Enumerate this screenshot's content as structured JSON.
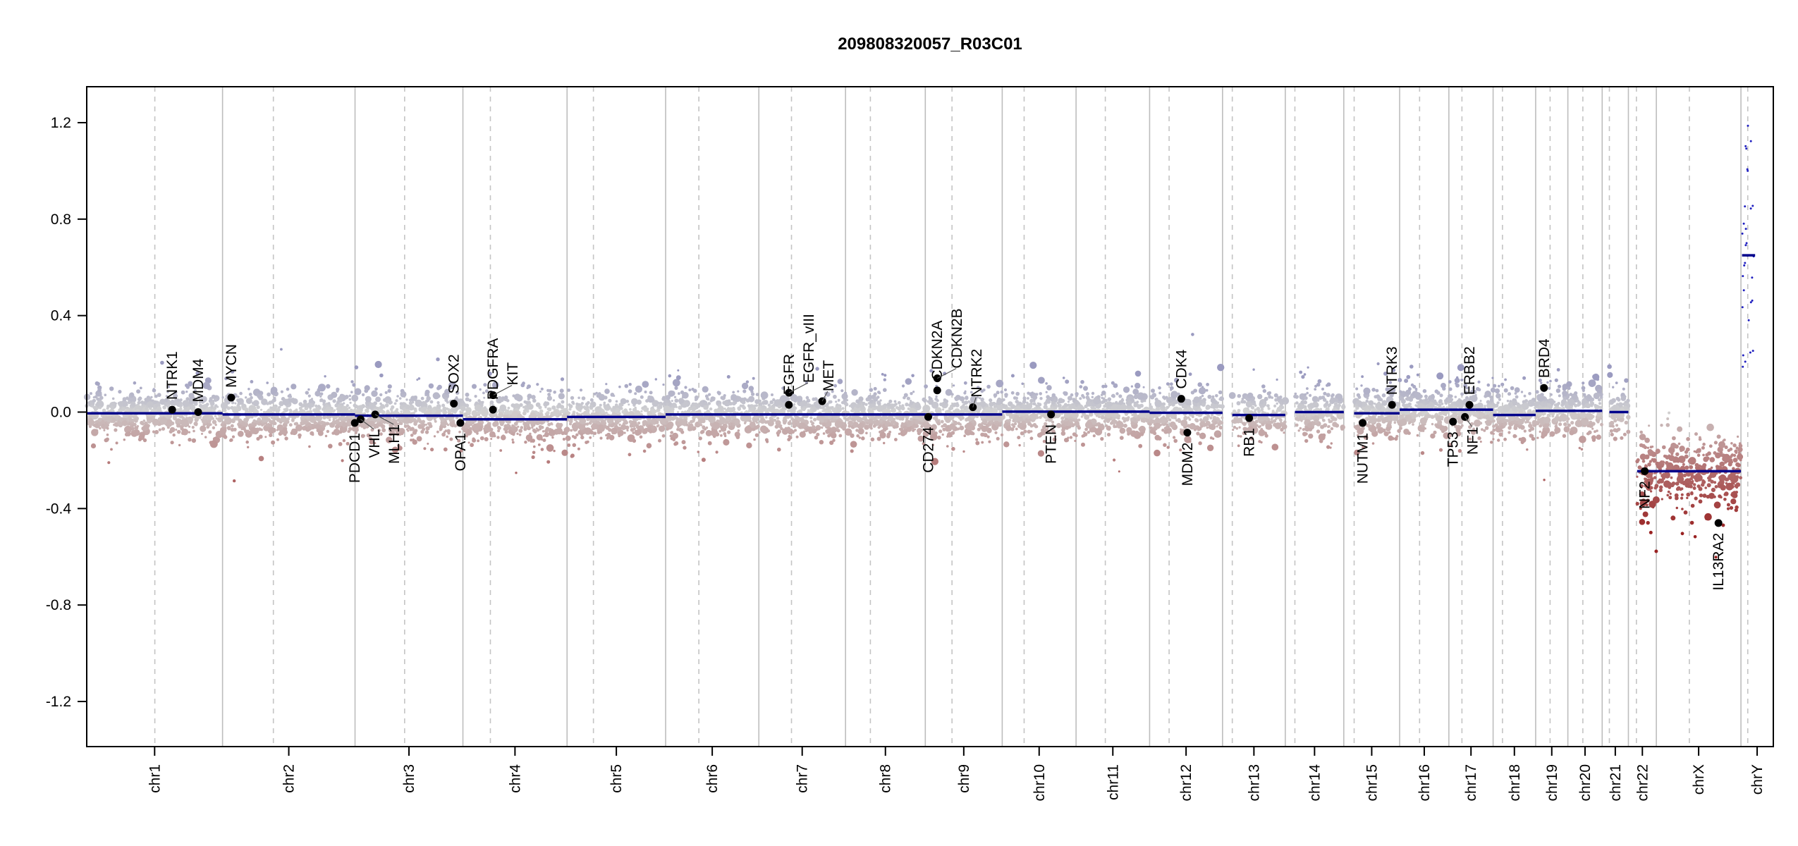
{
  "chart_data": {
    "type": "scatter",
    "title": "209808320057_R03C01",
    "xlabel": "",
    "ylabel": "",
    "ylim": [
      -1.387,
      1.349
    ],
    "yticks": [
      "1.2",
      "0.8",
      "0.4",
      "0.0",
      "-0.4",
      "-0.8",
      "-1.2"
    ],
    "grid": false,
    "colors": {
      "segment": "#00008b",
      "gene_point": "#000000",
      "gain": "#9a9ac0",
      "neutral": "#d2d2d2",
      "loss": "#992222",
      "chrY": "#2020c0",
      "chrom_line": "#bdbdbd",
      "centromere_line": "#c4c4c4"
    },
    "chromosomes": [
      {
        "name": "chr1",
        "length_mb": 249.25,
        "centromere_mb": 125.0
      },
      {
        "name": "chr2",
        "length_mb": 243.2,
        "centromere_mb": 93.3
      },
      {
        "name": "chr3",
        "length_mb": 198.0,
        "centromere_mb": 91.0
      },
      {
        "name": "chr4",
        "length_mb": 191.15,
        "centromere_mb": 50.4
      },
      {
        "name": "chr5",
        "length_mb": 180.9,
        "centromere_mb": 48.4
      },
      {
        "name": "chr6",
        "length_mb": 171.1,
        "centromere_mb": 61.0
      },
      {
        "name": "chr7",
        "length_mb": 159.1,
        "centromere_mb": 59.9
      },
      {
        "name": "chr8",
        "length_mb": 146.4,
        "centromere_mb": 45.6
      },
      {
        "name": "chr9",
        "length_mb": 141.2,
        "centromere_mb": 49.0
      },
      {
        "name": "chr10",
        "length_mb": 135.5,
        "centromere_mb": 40.2
      },
      {
        "name": "chr11",
        "length_mb": 135.0,
        "centromere_mb": 53.7
      },
      {
        "name": "chr12",
        "length_mb": 133.85,
        "centromere_mb": 35.8
      },
      {
        "name": "chr13",
        "length_mb": 115.2,
        "centromere_mb": 17.9
      },
      {
        "name": "chr14",
        "length_mb": 107.35,
        "centromere_mb": 17.6
      },
      {
        "name": "chr15",
        "length_mb": 102.5,
        "centromere_mb": 19.0
      },
      {
        "name": "chr16",
        "length_mb": 90.35,
        "centromere_mb": 36.6
      },
      {
        "name": "chr17",
        "length_mb": 81.2,
        "centromere_mb": 24.0
      },
      {
        "name": "chr18",
        "length_mb": 78.1,
        "centromere_mb": 17.2
      },
      {
        "name": "chr19",
        "length_mb": 59.1,
        "centromere_mb": 26.5
      },
      {
        "name": "chr20",
        "length_mb": 63.0,
        "centromere_mb": 27.5
      },
      {
        "name": "chr21",
        "length_mb": 48.1,
        "centromere_mb": 13.2
      },
      {
        "name": "chr22",
        "length_mb": 51.3,
        "centromere_mb": 14.7
      },
      {
        "name": "chrX",
        "length_mb": 155.3,
        "centromere_mb": 60.6
      },
      {
        "name": "chrY",
        "length_mb": 59.4,
        "centromere_mb": 12.5
      }
    ],
    "segments": [
      {
        "chr": "chr1",
        "start": 0,
        "end": 249.25,
        "value": -0.005
      },
      {
        "chr": "chr2",
        "start": 0,
        "end": 243.2,
        "value": -0.01
      },
      {
        "chr": "chr3",
        "start": 0,
        "end": 198.0,
        "value": -0.015
      },
      {
        "chr": "chr4",
        "start": 0,
        "end": 191.15,
        "value": -0.03
      },
      {
        "chr": "chr5",
        "start": 0,
        "end": 180.9,
        "value": -0.02
      },
      {
        "chr": "chr6",
        "start": 0,
        "end": 171.1,
        "value": -0.01
      },
      {
        "chr": "chr7",
        "start": 0,
        "end": 159.1,
        "value": -0.01
      },
      {
        "chr": "chr8",
        "start": 0,
        "end": 146.4,
        "value": -0.01
      },
      {
        "chr": "chr9",
        "start": 0,
        "end": 141.2,
        "value": -0.01
      },
      {
        "chr": "chr10",
        "start": 0,
        "end": 135.5,
        "value": 0.002
      },
      {
        "chr": "chr11",
        "start": 0,
        "end": 135.0,
        "value": 0.002
      },
      {
        "chr": "chr12",
        "start": 0,
        "end": 133.85,
        "value": -0.003
      },
      {
        "chr": "chr13",
        "start": 17.9,
        "end": 115.2,
        "value": -0.012
      },
      {
        "chr": "chr14",
        "start": 17.6,
        "end": 107.35,
        "value": 0.0
      },
      {
        "chr": "chr15",
        "start": 19.0,
        "end": 102.5,
        "value": -0.005
      },
      {
        "chr": "chr16",
        "start": 0,
        "end": 90.35,
        "value": 0.01
      },
      {
        "chr": "chr17",
        "start": 0,
        "end": 81.2,
        "value": 0.01
      },
      {
        "chr": "chr18",
        "start": 0,
        "end": 78.1,
        "value": -0.012
      },
      {
        "chr": "chr19",
        "start": 0,
        "end": 59.1,
        "value": 0.005
      },
      {
        "chr": "chr20",
        "start": 0,
        "end": 63.0,
        "value": 0.005
      },
      {
        "chr": "chr21",
        "start": 13.2,
        "end": 48.1,
        "value": 0.0
      },
      {
        "chr": "chr22",
        "start": 16.0,
        "end": 51.3,
        "value": -0.245
      },
      {
        "chr": "chrX",
        "start": 0,
        "end": 155.3,
        "value": -0.245
      },
      {
        "chr": "chrY",
        "start": 2.0,
        "end": 26.0,
        "value": 0.65
      }
    ],
    "genes": [
      {
        "name": "NTRK1",
        "chr": "chr1",
        "pos_mb": 156.8,
        "value": 0.01
      },
      {
        "name": "MDM4",
        "chr": "chr1",
        "pos_mb": 204.5,
        "value": 0.0
      },
      {
        "name": "MYCN",
        "chr": "chr2",
        "pos_mb": 16.0,
        "value": 0.06
      },
      {
        "name": "PDCD1",
        "chr": "chr2",
        "pos_mb": 242.8,
        "value": -0.045
      },
      {
        "name": "VHL",
        "chr": "chr3",
        "pos_mb": 10.2,
        "value": -0.03
      },
      {
        "name": "MLH1",
        "chr": "chr3",
        "pos_mb": 37.0,
        "value": -0.01
      },
      {
        "name": "SOX2",
        "chr": "chr3",
        "pos_mb": 181.4,
        "value": 0.035
      },
      {
        "name": "OPA1",
        "chr": "chr3",
        "pos_mb": 193.3,
        "value": -0.045
      },
      {
        "name": "KIT",
        "chr": "chr4",
        "pos_mb": 55.5,
        "value": 0.07
      },
      {
        "name": "PDGFRA",
        "chr": "chr4",
        "pos_mb": 55.1,
        "value": 0.01
      },
      {
        "name": "EGFR",
        "chr": "chr7",
        "pos_mb": 55.1,
        "value": 0.03
      },
      {
        "name": "EGFR_vIII",
        "chr": "chr7",
        "pos_mb": 55.2,
        "value": 0.08
      },
      {
        "name": "MET",
        "chr": "chr7",
        "pos_mb": 116.3,
        "value": 0.045
      },
      {
        "name": "CD274",
        "chr": "chr9",
        "pos_mb": 5.4,
        "value": -0.02
      },
      {
        "name": "CDKN2A",
        "chr": "chr9",
        "pos_mb": 21.9,
        "value": 0.09
      },
      {
        "name": "CDKN2B",
        "chr": "chr9",
        "pos_mb": 22.0,
        "value": 0.14
      },
      {
        "name": "NTRK2",
        "chr": "chr9",
        "pos_mb": 87.3,
        "value": 0.02
      },
      {
        "name": "PTEN",
        "chr": "chr10",
        "pos_mb": 89.6,
        "value": -0.01
      },
      {
        "name": "CDK4",
        "chr": "chr12",
        "pos_mb": 58.1,
        "value": 0.055
      },
      {
        "name": "MDM2",
        "chr": "chr12",
        "pos_mb": 69.2,
        "value": -0.085
      },
      {
        "name": "RB1",
        "chr": "chr13",
        "pos_mb": 48.9,
        "value": -0.025
      },
      {
        "name": "NUTM1",
        "chr": "chr15",
        "pos_mb": 34.6,
        "value": -0.045
      },
      {
        "name": "NTRK3",
        "chr": "chr15",
        "pos_mb": 88.5,
        "value": 0.03
      },
      {
        "name": "TP53",
        "chr": "chr17",
        "pos_mb": 7.6,
        "value": -0.04
      },
      {
        "name": "NF1",
        "chr": "chr17",
        "pos_mb": 29.5,
        "value": -0.02
      },
      {
        "name": "ERBB2",
        "chr": "chr17",
        "pos_mb": 37.8,
        "value": 0.03
      },
      {
        "name": "BRD4",
        "chr": "chr19",
        "pos_mb": 15.3,
        "value": 0.1
      },
      {
        "name": "NF2",
        "chr": "chr22",
        "pos_mb": 30.0,
        "value": -0.245
      },
      {
        "name": "IL13RA2",
        "chr": "chrX",
        "pos_mb": 114.0,
        "value": -0.46
      }
    ]
  }
}
